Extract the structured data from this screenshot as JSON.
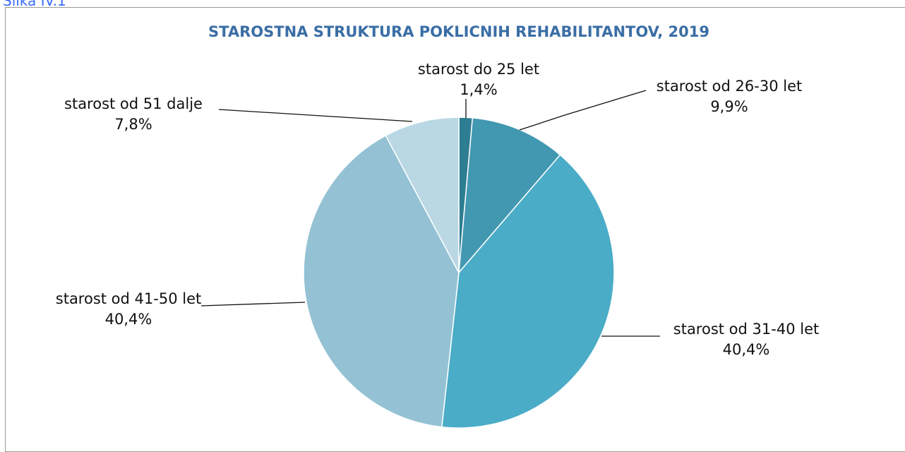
{
  "caption": "Slika IV.1",
  "chart_data": {
    "type": "pie",
    "title": "STAROSTNA STRUKTURA POKLICNIH REHABILITANTOV, 2019",
    "categories": [
      "starost do 25 let",
      "starost od 26-30 let",
      "starost od 31-40 let",
      "starost od 41-50 let",
      "starost od 51 dalje"
    ],
    "values": [
      1.4,
      9.9,
      40.4,
      40.4,
      7.8
    ],
    "value_labels": [
      "1,4%",
      "9,9%",
      "40,4%",
      "40,4%",
      "7,8%"
    ],
    "colors": [
      "#2e7d92",
      "#4398b1",
      "#4aacc6",
      "#94c2d4",
      "#bad8e4"
    ]
  }
}
